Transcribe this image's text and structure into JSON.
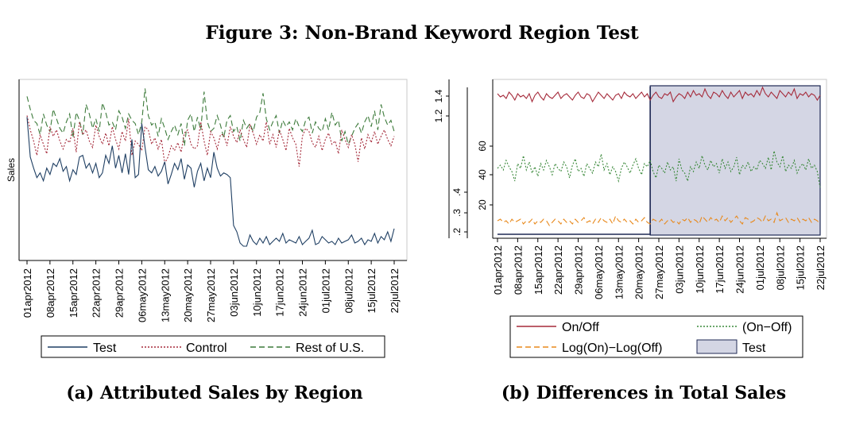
{
  "figure_title": "Figure 3: Non-Brand Keyword Region Test",
  "colors": {
    "test": "#1f3f63",
    "control": "#a52a3a",
    "rest": "#3c7a3a",
    "onoff": "#a52a3a",
    "diff": "#3c8a3c",
    "log": "#e8891c",
    "shade": "#d4d6e4"
  },
  "chart_data": [
    {
      "type": "line",
      "caption": "(a) Attributed Sales by Region",
      "ylabel": "Sales",
      "x_ticks": [
        "01apr2012",
        "08apr2012",
        "15apr2012",
        "22apr2012",
        "29apr2012",
        "06may2012",
        "13may2012",
        "20may2012",
        "27may2012",
        "03jun2012",
        "10jun2012",
        "17jun2012",
        "24jun2012",
        "01jul2012",
        "08jul2012",
        "15jul2012",
        "22jul2012"
      ],
      "x_start": "2012-04-01",
      "days": 113,
      "ylim": [
        0,
        1
      ],
      "legend": [
        "Test",
        "Control",
        "Rest of U.S."
      ],
      "series": [
        {
          "name": "Test",
          "values": [
            0.87,
            0.62,
            0.55,
            0.49,
            0.52,
            0.47,
            0.55,
            0.51,
            0.58,
            0.56,
            0.61,
            0.53,
            0.56,
            0.47,
            0.54,
            0.51,
            0.62,
            0.63,
            0.55,
            0.58,
            0.52,
            0.58,
            0.49,
            0.52,
            0.63,
            0.58,
            0.69,
            0.55,
            0.63,
            0.52,
            0.64,
            0.51,
            0.73,
            0.49,
            0.51,
            0.83,
            0.68,
            0.54,
            0.52,
            0.56,
            0.5,
            0.53,
            0.59,
            0.45,
            0.51,
            0.58,
            0.54,
            0.61,
            0.48,
            0.57,
            0.55,
            0.43,
            0.53,
            0.58,
            0.47,
            0.55,
            0.49,
            0.65,
            0.55,
            0.5,
            0.52,
            0.51,
            0.49,
            0.19,
            0.15,
            0.08,
            0.06,
            0.06,
            0.13,
            0.09,
            0.07,
            0.11,
            0.08,
            0.12,
            0.07,
            0.09,
            0.11,
            0.09,
            0.14,
            0.08,
            0.1,
            0.09,
            0.08,
            0.12,
            0.07,
            0.09,
            0.11,
            0.16,
            0.07,
            0.08,
            0.12,
            0.1,
            0.08,
            0.09,
            0.07,
            0.11,
            0.08,
            0.09,
            0.1,
            0.13,
            0.08,
            0.09,
            0.11,
            0.07,
            0.1,
            0.09,
            0.14,
            0.08,
            0.12,
            0.1,
            0.15,
            0.09,
            0.17
          ]
        },
        {
          "name": "Control",
          "values": [
            0.88,
            0.79,
            0.72,
            0.63,
            0.76,
            0.7,
            0.64,
            0.81,
            0.75,
            0.79,
            0.72,
            0.67,
            0.73,
            0.71,
            0.8,
            0.65,
            0.84,
            0.76,
            0.79,
            0.72,
            0.68,
            0.82,
            0.75,
            0.7,
            0.77,
            0.69,
            0.81,
            0.73,
            0.67,
            0.78,
            0.72,
            0.86,
            0.63,
            0.72,
            0.7,
            0.66,
            0.81,
            0.79,
            0.7,
            0.74,
            0.67,
            0.73,
            0.58,
            0.62,
            0.69,
            0.66,
            0.71,
            0.65,
            0.77,
            0.79,
            0.7,
            0.67,
            0.69,
            0.84,
            0.72,
            0.63,
            0.78,
            0.74,
            0.67,
            0.76,
            0.76,
            0.69,
            0.81,
            0.75,
            0.71,
            0.79,
            0.73,
            0.68,
            0.82,
            0.77,
            0.7,
            0.76,
            0.72,
            0.84,
            0.7,
            0.76,
            0.68,
            0.79,
            0.73,
            0.66,
            0.8,
            0.74,
            0.7,
            0.56,
            0.75,
            0.8,
            0.78,
            0.71,
            0.68,
            0.75,
            0.66,
            0.73,
            0.77,
            0.7,
            0.72,
            0.64,
            0.79,
            0.73,
            0.68,
            0.76,
            0.7,
            0.59,
            0.74,
            0.67,
            0.76,
            0.71,
            0.78,
            0.7,
            0.75,
            0.79,
            0.73,
            0.69,
            0.75
          ]
        },
        {
          "name": "Rest of U.S.",
          "values": [
            1.0,
            0.92,
            0.85,
            0.83,
            0.76,
            0.89,
            0.82,
            0.78,
            0.92,
            0.86,
            0.8,
            0.77,
            0.84,
            0.89,
            0.74,
            0.9,
            0.85,
            0.76,
            0.95,
            0.89,
            0.8,
            0.86,
            0.78,
            0.96,
            0.9,
            0.82,
            0.84,
            0.79,
            0.91,
            0.87,
            0.8,
            0.89,
            0.85,
            0.83,
            0.76,
            0.84,
            1.05,
            0.88,
            0.82,
            0.84,
            0.75,
            0.86,
            0.8,
            0.73,
            0.78,
            0.82,
            0.76,
            0.83,
            0.69,
            0.85,
            0.89,
            0.78,
            0.87,
            0.79,
            1.03,
            0.84,
            0.78,
            0.8,
            0.88,
            0.82,
            0.74,
            0.85,
            0.88,
            0.78,
            0.81,
            0.72,
            0.85,
            0.8,
            0.83,
            0.78,
            0.87,
            0.9,
            1.02,
            0.86,
            0.79,
            0.84,
            0.88,
            0.77,
            0.85,
            0.81,
            0.84,
            0.79,
            0.86,
            0.81,
            0.78,
            0.85,
            0.87,
            0.77,
            0.84,
            0.8,
            0.78,
            0.86,
            0.79,
            0.9,
            0.82,
            0.85,
            0.72,
            0.78,
            0.7,
            0.75,
            0.8,
            0.83,
            0.77,
            0.84,
            0.88,
            0.81,
            0.91,
            0.79,
            0.95,
            0.87,
            0.82,
            0.85,
            0.78
          ]
        }
      ]
    },
    {
      "type": "line",
      "caption": "(b) Differences in Total Sales",
      "x_ticks": [
        "01apr2012",
        "08apr2012",
        "15apr2012",
        "22apr2012",
        "29apr2012",
        "06may2012",
        "13may2012",
        "20may2012",
        "27may2012",
        "03jun2012",
        "10jun2012",
        "17jun2012",
        "24jun2012",
        "01jul2012",
        "08jul2012",
        "15jul2012",
        "22jul2012"
      ],
      "x_start": "2012-04-01",
      "days": 113,
      "test_period": [
        "2012-05-24",
        "2012-07-22"
      ],
      "axis_left_outer": {
        "ticks": [
          ".2",
          ".3",
          ".4"
        ]
      },
      "axis_left_inner": {
        "ticks": [
          "20",
          "40",
          "60"
        ]
      },
      "axis_left_top": {
        "ticks": [
          "1.2",
          "1.4"
        ]
      },
      "legend": [
        "On/Off",
        "(On−Off)",
        "Log(On)−Log(Off)",
        "Test"
      ],
      "series": [
        {
          "name": "On/Off",
          "values": [
            0.91,
            0.89,
            0.9,
            0.88,
            0.92,
            0.9,
            0.87,
            0.91,
            0.89,
            0.9,
            0.88,
            0.91,
            0.86,
            0.9,
            0.92,
            0.89,
            0.87,
            0.91,
            0.89,
            0.88,
            0.9,
            0.92,
            0.88,
            0.9,
            0.91,
            0.89,
            0.87,
            0.9,
            0.92,
            0.89,
            0.88,
            0.91,
            0.9,
            0.86,
            0.89,
            0.92,
            0.9,
            0.88,
            0.91,
            0.89,
            0.87,
            0.9,
            0.91,
            0.88,
            0.92,
            0.9,
            0.89,
            0.91,
            0.88,
            0.9,
            0.92,
            0.89,
            0.91,
            0.87,
            0.9,
            0.92,
            0.89,
            0.88,
            0.91,
            0.9,
            0.92,
            0.86,
            0.89,
            0.91,
            0.9,
            0.88,
            0.92,
            0.89,
            0.93,
            0.9,
            0.91,
            0.89,
            0.94,
            0.9,
            0.88,
            0.92,
            0.91,
            0.89,
            0.93,
            0.9,
            0.88,
            0.92,
            0.89,
            0.91,
            0.93,
            0.88,
            0.92,
            0.9,
            0.91,
            0.89,
            0.93,
            0.9,
            0.95,
            0.91,
            0.89,
            0.92,
            0.9,
            0.88,
            0.93,
            0.91,
            0.89,
            0.92,
            0.9,
            0.94,
            0.88,
            0.91,
            0.9,
            0.92,
            0.89,
            0.91,
            0.9,
            0.87,
            0.9
          ]
        },
        {
          "name": "(On−Off)",
          "values": [
            0.44,
            0.46,
            0.43,
            0.49,
            0.45,
            0.42,
            0.36,
            0.47,
            0.44,
            0.52,
            0.43,
            0.48,
            0.41,
            0.45,
            0.39,
            0.47,
            0.43,
            0.49,
            0.45,
            0.4,
            0.47,
            0.44,
            0.42,
            0.48,
            0.45,
            0.38,
            0.46,
            0.5,
            0.42,
            0.44,
            0.39,
            0.47,
            0.44,
            0.41,
            0.48,
            0.45,
            0.53,
            0.43,
            0.47,
            0.4,
            0.45,
            0.42,
            0.36,
            0.44,
            0.48,
            0.45,
            0.41,
            0.46,
            0.5,
            0.44,
            0.4,
            0.47,
            0.45,
            0.49,
            0.42,
            0.38,
            0.46,
            0.44,
            0.41,
            0.48,
            0.43,
            0.45,
            0.36,
            0.5,
            0.43,
            0.41,
            0.36,
            0.45,
            0.42,
            0.48,
            0.44,
            0.52,
            0.46,
            0.43,
            0.49,
            0.45,
            0.47,
            0.41,
            0.5,
            0.44,
            0.48,
            0.42,
            0.45,
            0.51,
            0.4,
            0.46,
            0.44,
            0.48,
            0.42,
            0.45,
            0.43,
            0.49,
            0.47,
            0.44,
            0.51,
            0.43,
            0.55,
            0.48,
            0.45,
            0.52,
            0.42,
            0.46,
            0.44,
            0.49,
            0.41,
            0.45,
            0.47,
            0.43,
            0.5,
            0.44,
            0.46,
            0.42,
            0.32
          ]
        },
        {
          "name": "Log(On)−Log(Off)",
          "values": [
            0.11,
            0.12,
            0.1,
            0.11,
            0.09,
            0.12,
            0.1,
            0.11,
            0.12,
            0.09,
            0.11,
            0.1,
            0.12,
            0.09,
            0.11,
            0.1,
            0.12,
            0.11,
            0.08,
            0.1,
            0.12,
            0.11,
            0.09,
            0.12,
            0.1,
            0.11,
            0.09,
            0.12,
            0.1,
            0.11,
            0.13,
            0.1,
            0.11,
            0.09,
            0.12,
            0.1,
            0.13,
            0.11,
            0.1,
            0.12,
            0.09,
            0.14,
            0.11,
            0.1,
            0.12,
            0.1,
            0.11,
            0.09,
            0.12,
            0.1,
            0.11,
            0.13,
            0.1,
            0.09,
            0.12,
            0.11,
            0.1,
            0.12,
            0.09,
            0.11,
            0.12,
            0.1,
            0.11,
            0.09,
            0.12,
            0.11,
            0.13,
            0.1,
            0.12,
            0.11,
            0.09,
            0.14,
            0.12,
            0.1,
            0.13,
            0.11,
            0.12,
            0.1,
            0.14,
            0.11,
            0.13,
            0.1,
            0.12,
            0.14,
            0.11,
            0.09,
            0.13,
            0.12,
            0.1,
            0.11,
            0.13,
            0.12,
            0.1,
            0.14,
            0.11,
            0.12,
            0.1,
            0.16,
            0.11,
            0.12,
            0.13,
            0.1,
            0.12,
            0.11,
            0.13,
            0.1,
            0.12,
            0.11,
            0.13,
            0.1,
            0.12,
            0.11,
            0.09
          ]
        }
      ]
    }
  ]
}
